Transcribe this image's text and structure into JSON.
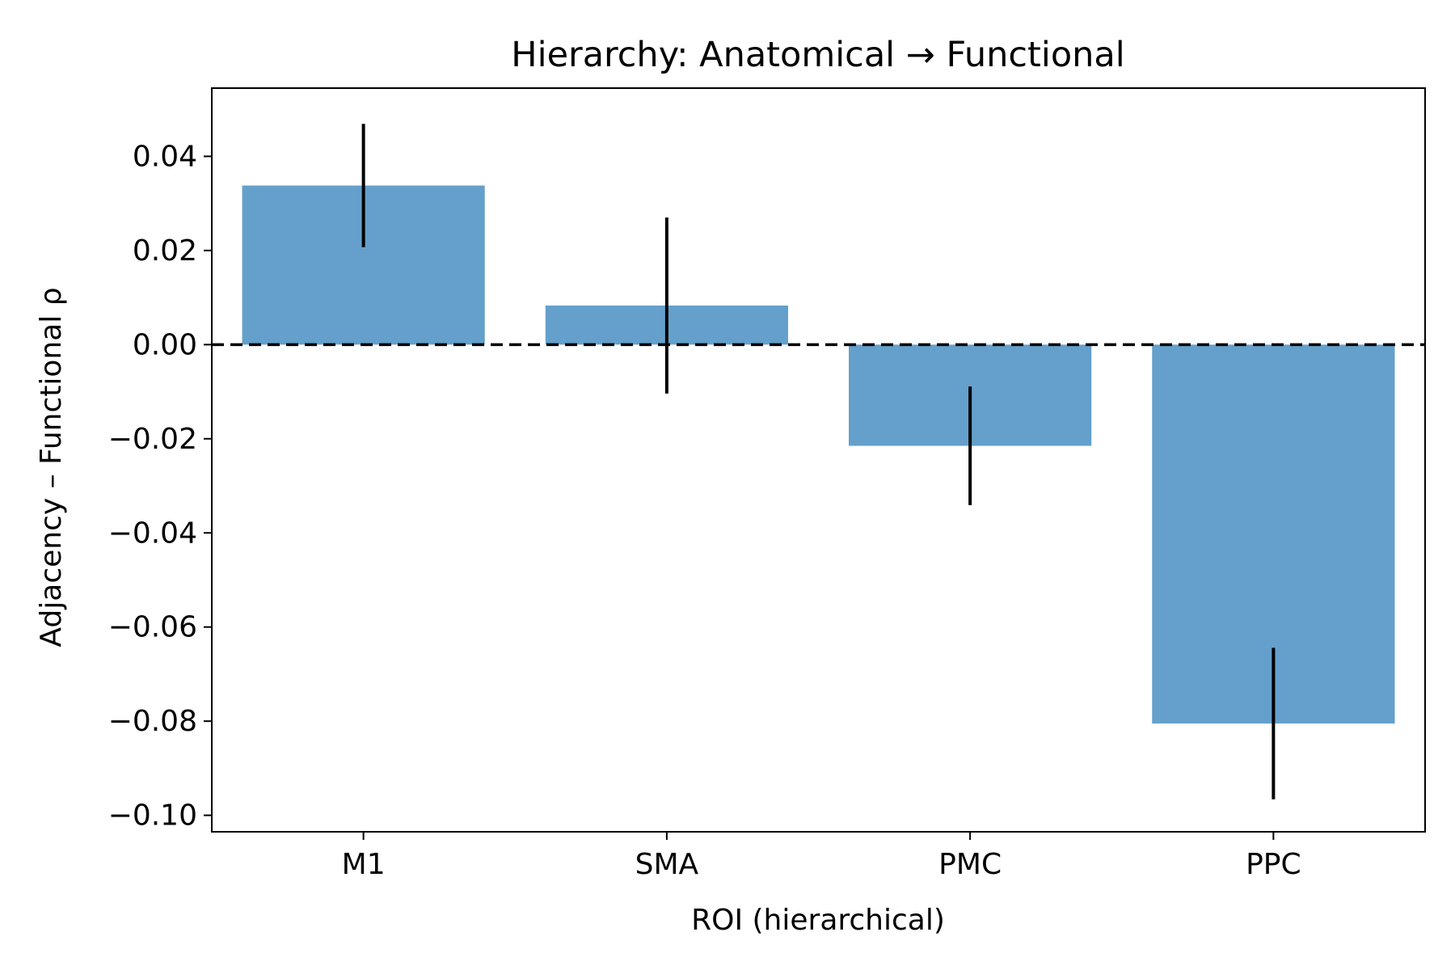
{
  "chart_data": {
    "type": "bar",
    "title": "Hierarchy: Anatomical → Functional",
    "xlabel": "ROI (hierarchical)",
    "ylabel": "Adjacency – Functional ρ",
    "categories": [
      "M1",
      "SMA",
      "PMC",
      "PPC"
    ],
    "values": [
      0.0338,
      0.0083,
      -0.0215,
      -0.0805
    ],
    "errors": [
      0.0131,
      0.0187,
      0.0126,
      0.0161
    ],
    "ylim": [
      -0.1035,
      0.0545
    ],
    "yticks": [
      0.04,
      0.02,
      0.0,
      -0.02,
      -0.04,
      -0.06,
      -0.08,
      -0.1
    ],
    "ytick_labels": [
      "0.04",
      "0.02",
      "0.00",
      "−0.02",
      "−0.04",
      "−0.06",
      "−0.08",
      "−0.10"
    ],
    "reference_line": {
      "y": 0,
      "style": "dashed",
      "color": "#000000"
    },
    "bar_color": "#64a0cb",
    "grid": false
  }
}
